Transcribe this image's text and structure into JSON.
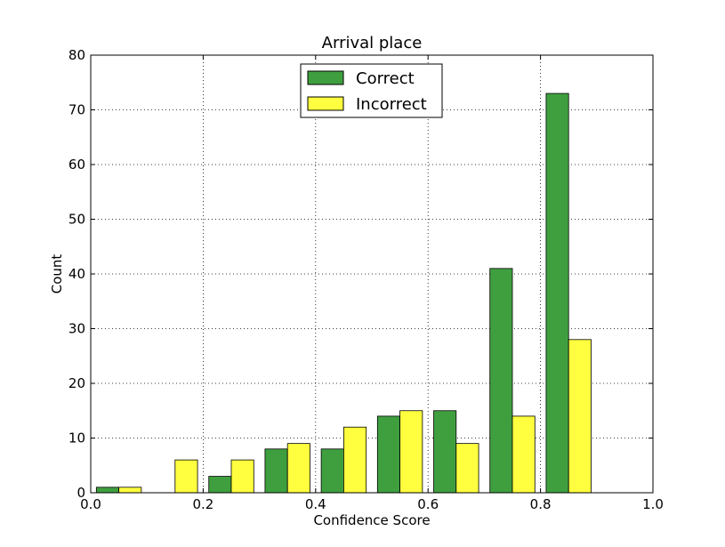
{
  "chart_data": {
    "type": "bar",
    "title": "Arrival place",
    "xlabel": "Confidence Score",
    "ylabel": "Count",
    "xlim": [
      0.0,
      1.0
    ],
    "ylim": [
      0,
      80
    ],
    "x_ticks": [
      "0.0",
      "0.2",
      "0.4",
      "0.6",
      "0.8",
      "1.0"
    ],
    "y_ticks": [
      "0",
      "10",
      "20",
      "30",
      "40",
      "50",
      "60",
      "70",
      "80"
    ],
    "grid": true,
    "legend_position": "upper center",
    "bin_edges": [
      0.0,
      0.1,
      0.2,
      0.3,
      0.4,
      0.5,
      0.6,
      0.7,
      0.8,
      0.9,
      1.0
    ],
    "series": [
      {
        "name": "Correct",
        "color": "#3f9f3f",
        "values": [
          1,
          0,
          3,
          8,
          8,
          14,
          15,
          41,
          73,
          0
        ]
      },
      {
        "name": "Incorrect",
        "color": "#ffff3f",
        "values": [
          1,
          6,
          6,
          9,
          12,
          15,
          9,
          14,
          28,
          0
        ]
      }
    ]
  }
}
